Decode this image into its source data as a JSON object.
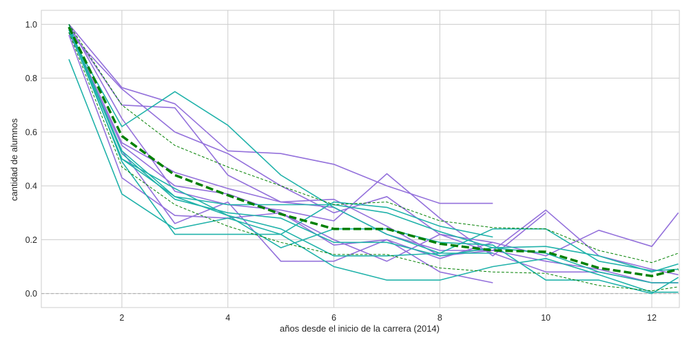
{
  "chart_data": {
    "type": "line",
    "xlabel": "años desde el inicio de la carrera (2014)",
    "ylabel": "cantidad de alumnos",
    "xlim": [
      0.48,
      12.52
    ],
    "ylim": [
      -0.052,
      1.052
    ],
    "xticks": [
      2,
      4,
      6,
      8,
      10,
      12
    ],
    "yticks": [
      0.0,
      0.2,
      0.4,
      0.6,
      0.8,
      1.0
    ],
    "ytick_labels": [
      "0.0",
      "0.2",
      "0.4",
      "0.6",
      "0.8",
      "1.0"
    ],
    "grid": true,
    "legend": "none",
    "reference_line": {
      "y": 0.0,
      "color": "#b3b3b3",
      "style": "dashed"
    },
    "colors": {
      "purple": "#9370db",
      "teal": "#20b2aa",
      "mean": "#008000",
      "background": "#ffffff",
      "grid": "#cccccc"
    },
    "series": [
      {
        "group": "purple",
        "x": [
          1,
          2,
          3,
          4,
          5,
          6,
          7,
          8,
          9
        ],
        "y": [
          1.0,
          0.765,
          0.705,
          0.53,
          0.52,
          0.48,
          0.4,
          0.335,
          0.335
        ]
      },
      {
        "group": "purple",
        "x": [
          1,
          2,
          3,
          4,
          5,
          6,
          7,
          8,
          9,
          10
        ],
        "y": [
          1.0,
          0.65,
          0.38,
          0.33,
          0.31,
          0.27,
          0.445,
          0.28,
          0.14,
          0.3
        ]
      },
      {
        "group": "purple",
        "x": [
          1,
          2,
          3,
          4,
          5,
          6,
          7,
          8,
          9,
          10,
          11,
          12,
          12.5
        ],
        "y": [
          0.99,
          0.7,
          0.69,
          0.44,
          0.34,
          0.32,
          0.22,
          0.16,
          0.16,
          0.31,
          0.14,
          0.09,
          0.07
        ]
      },
      {
        "group": "purple",
        "x": [
          1,
          2,
          3,
          4,
          5,
          6,
          7,
          8,
          9,
          10,
          11,
          12,
          12.5
        ],
        "y": [
          0.97,
          0.76,
          0.6,
          0.52,
          0.4,
          0.3,
          0.36,
          0.22,
          0.19,
          0.14,
          0.235,
          0.175,
          0.3
        ]
      },
      {
        "group": "purple",
        "x": [
          1,
          2,
          3,
          4,
          5,
          6,
          7,
          8,
          9,
          10,
          11,
          12,
          12.5
        ],
        "y": [
          0.98,
          0.56,
          0.45,
          0.39,
          0.34,
          0.35,
          0.25,
          0.14,
          0.16,
          0.12,
          0.09,
          0.04,
          0.04
        ]
      },
      {
        "group": "purple",
        "x": [
          1,
          2,
          3,
          4,
          5,
          6,
          7,
          8,
          9,
          10,
          11,
          12,
          12.5
        ],
        "y": [
          0.96,
          0.43,
          0.29,
          0.28,
          0.3,
          0.2,
          0.12,
          0.22,
          0.15,
          0.08,
          0.08,
          0.04,
          0.04
        ]
      },
      {
        "group": "purple",
        "x": [
          1,
          2,
          3,
          4,
          5,
          6,
          7,
          8,
          9
        ],
        "y": [
          0.97,
          0.55,
          0.4,
          0.37,
          0.3,
          0.18,
          0.2,
          0.13,
          0.19
        ]
      },
      {
        "group": "purple",
        "x": [
          1,
          2,
          3,
          4,
          5,
          6,
          7,
          8,
          9
        ],
        "y": [
          0.98,
          0.53,
          0.26,
          0.34,
          0.12,
          0.12,
          0.2,
          0.08,
          0.04
        ]
      },
      {
        "group": "teal",
        "x": [
          1,
          2,
          3,
          4,
          5,
          6,
          7,
          8,
          9
        ],
        "y": [
          0.87,
          0.37,
          0.24,
          0.28,
          0.22,
          0.34,
          0.32,
          0.25,
          0.21
        ]
      },
      {
        "group": "teal",
        "x": [
          1,
          2,
          3,
          4,
          5,
          6,
          7,
          8,
          9,
          10,
          11,
          12,
          12.5
        ],
        "y": [
          0.97,
          0.62,
          0.75,
          0.625,
          0.44,
          0.32,
          0.22,
          0.15,
          0.24,
          0.24,
          0.12,
          0.085,
          0.09
        ]
      },
      {
        "group": "teal",
        "x": [
          1,
          2,
          3,
          4,
          5,
          6,
          7,
          8,
          9,
          10,
          11,
          12,
          12.5
        ],
        "y": [
          0.98,
          0.5,
          0.36,
          0.33,
          0.33,
          0.33,
          0.3,
          0.23,
          0.17,
          0.175,
          0.14,
          0.08,
          0.11
        ]
      },
      {
        "group": "teal",
        "x": [
          1,
          2,
          3,
          4,
          5,
          6,
          7,
          8,
          9,
          10,
          11,
          12,
          12.5
        ],
        "y": [
          1.0,
          0.49,
          0.22,
          0.22,
          0.22,
          0.1,
          0.05,
          0.05,
          0.1,
          0.13,
          0.07,
          0.005,
          0.005
        ]
      },
      {
        "group": "teal",
        "x": [
          1,
          2,
          3,
          4,
          5,
          6,
          7,
          8,
          9,
          10,
          11,
          12,
          12.5
        ],
        "y": [
          0.99,
          0.53,
          0.36,
          0.29,
          0.17,
          0.24,
          0.24,
          0.19,
          0.18,
          0.05,
          0.05,
          0.0,
          0.06
        ]
      },
      {
        "group": "teal",
        "x": [
          1,
          2,
          3,
          4,
          5,
          6,
          7,
          8,
          9,
          10,
          11,
          12,
          12.5
        ],
        "y": [
          0.99,
          0.52,
          0.35,
          0.3,
          0.28,
          0.19,
          0.19,
          0.14,
          0.17,
          0.15,
          0.08,
          0.04,
          0.04
        ]
      },
      {
        "group": "teal",
        "x": [
          1,
          2,
          3,
          4,
          5,
          6,
          7,
          8,
          9
        ],
        "y": [
          0.98,
          0.5,
          0.39,
          0.29,
          0.24,
          0.14,
          0.14,
          0.15,
          0.15
        ]
      }
    ],
    "mean_line": {
      "x": [
        1,
        2,
        3,
        4,
        5,
        6,
        7,
        8,
        9,
        10,
        11,
        12,
        12.5
      ],
      "y": [
        0.99,
        0.585,
        0.44,
        0.365,
        0.295,
        0.24,
        0.24,
        0.185,
        0.16,
        0.155,
        0.095,
        0.065,
        0.09
      ]
    },
    "band_upper": {
      "x": [
        1,
        2,
        3,
        4,
        5,
        6,
        7,
        8,
        9,
        10,
        11,
        12,
        12.5
      ],
      "y": [
        1.0,
        0.7,
        0.55,
        0.47,
        0.4,
        0.33,
        0.34,
        0.27,
        0.245,
        0.24,
        0.16,
        0.115,
        0.15
      ]
    },
    "band_lower": {
      "x": [
        1,
        2,
        3,
        4,
        5,
        6,
        7,
        8,
        9,
        10,
        11,
        12,
        12.5
      ],
      "y": [
        0.97,
        0.47,
        0.33,
        0.25,
        0.19,
        0.145,
        0.145,
        0.095,
        0.08,
        0.075,
        0.03,
        0.01,
        0.025
      ]
    }
  }
}
